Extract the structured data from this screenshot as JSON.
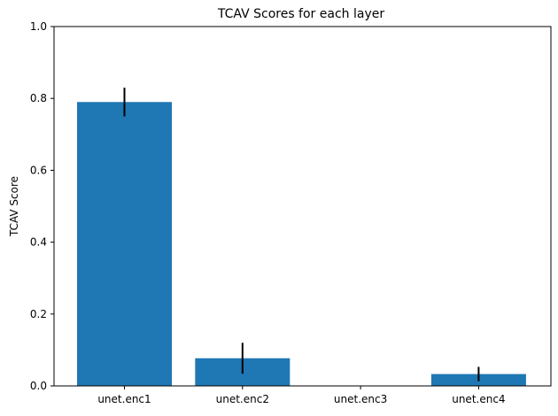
{
  "chart_data": {
    "type": "bar",
    "title": "TCAV Scores for each layer",
    "xlabel": "",
    "ylabel": "TCAV Score",
    "categories": [
      "unet.enc1",
      "unet.enc2",
      "unet.enc3",
      "unet.enc4"
    ],
    "values": [
      0.79,
      0.077,
      0.0,
      0.033
    ],
    "errors": [
      0.04,
      0.043,
      0.0,
      0.02
    ],
    "ylim": [
      0,
      1.0
    ],
    "yticks": [
      "0.0",
      "0.2",
      "0.4",
      "0.6",
      "0.8",
      "1.0"
    ],
    "grid": false,
    "colors": {
      "bar": "#1f77b4",
      "error": "#000000"
    }
  }
}
